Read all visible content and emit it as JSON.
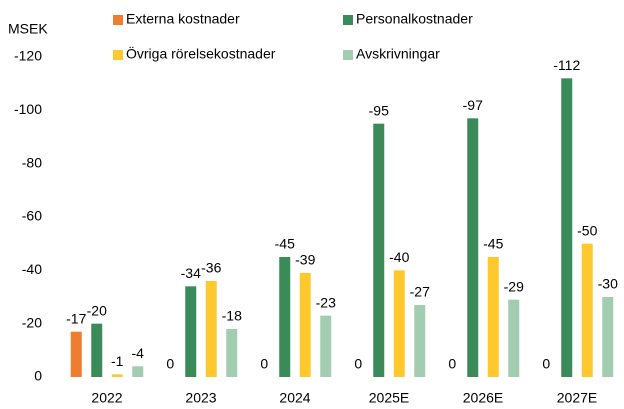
{
  "chart_data": {
    "type": "bar",
    "y_label": "MSEK",
    "categories": [
      "2022",
      "2023",
      "2024",
      "2025E",
      "2026E",
      "2027E"
    ],
    "series": [
      {
        "name": "Externa kostnader",
        "color": "#ed7d31",
        "values": [
          -17,
          0,
          0,
          0,
          0,
          0
        ]
      },
      {
        "name": "Personalkostnader",
        "color": "#3a8a5a",
        "values": [
          -20,
          -34,
          -45,
          -95,
          -97,
          -112
        ]
      },
      {
        "name": "Övriga rörelsekostnader",
        "color": "#ffc82c",
        "values": [
          -1,
          -36,
          -39,
          -40,
          -45,
          -50
        ]
      },
      {
        "name": "Avskrivningar",
        "color": "#a3cdb1",
        "values": [
          -4,
          -18,
          -23,
          -27,
          -29,
          -30
        ]
      }
    ],
    "ylim": [
      0,
      -120
    ],
    "yticks": [
      0,
      -20,
      -40,
      -60,
      -80,
      -100,
      -120
    ],
    "grid": false
  }
}
